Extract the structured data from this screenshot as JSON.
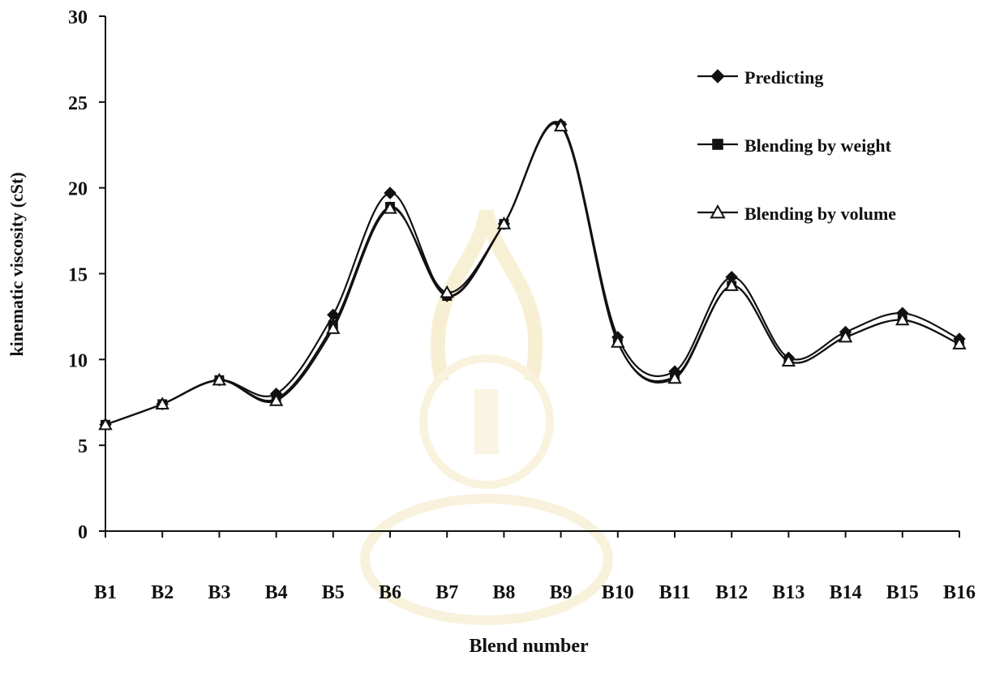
{
  "chart_data": {
    "type": "line",
    "title": "",
    "xlabel": "Blend number",
    "ylabel": "kinematic viscosity (cSt)",
    "ylim": [
      0,
      30
    ],
    "yticks": [
      "0",
      "5",
      "10",
      "15",
      "20",
      "25",
      "30"
    ],
    "categories": [
      "B1",
      "B2",
      "B3",
      "B4",
      "B5",
      "B6",
      "B7",
      "B8",
      "B9",
      "B10",
      "B11",
      "B12",
      "B13",
      "B14",
      "B15",
      "B16"
    ],
    "grid": false,
    "legend_position": "top-right",
    "series": [
      {
        "name": "Predicting",
        "marker": "diamond",
        "values": [
          6.2,
          7.4,
          8.8,
          8.0,
          12.6,
          19.7,
          13.7,
          17.9,
          23.7,
          11.3,
          9.3,
          14.8,
          10.1,
          11.6,
          12.7,
          11.2
        ]
      },
      {
        "name": "Blending by weight",
        "marker": "square",
        "values": [
          6.2,
          7.4,
          8.8,
          7.7,
          12.0,
          18.9,
          13.7,
          17.9,
          23.6,
          11.0,
          9.0,
          14.3,
          9.9,
          11.3,
          12.3,
          10.9
        ]
      },
      {
        "name": "Blending by volume",
        "marker": "triangle",
        "values": [
          6.2,
          7.4,
          8.8,
          7.6,
          11.8,
          18.8,
          13.9,
          17.9,
          23.6,
          11.0,
          8.9,
          14.3,
          9.9,
          11.3,
          12.3,
          10.9
        ]
      }
    ]
  }
}
